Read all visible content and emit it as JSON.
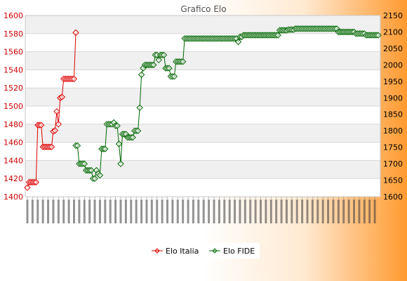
{
  "chart_data": {
    "type": "line",
    "title": "Grafico Elo",
    "left_axis": {
      "min": 1400,
      "max": 1600,
      "ticks": [
        1400,
        1420,
        1440,
        1460,
        1480,
        1500,
        1520,
        1540,
        1560,
        1580,
        1600
      ],
      "color": "#cc0000"
    },
    "right_axis": {
      "min": 1600,
      "max": 2150,
      "ticks": [
        1600,
        1650,
        1700,
        1750,
        1800,
        1850,
        1900,
        1950,
        2000,
        2050,
        2100,
        2150
      ],
      "color": "#005500"
    },
    "grid": true,
    "legend_position": "bottom-center",
    "series": [
      {
        "name": "Elo Italia",
        "axis": "left",
        "color": "#dd0000",
        "start_index": 0,
        "values": [
          1410,
          1416,
          1416,
          1416,
          1416,
          1416,
          1479,
          1479,
          1479,
          1455,
          1455,
          1455,
          1455,
          1455,
          1455,
          1472,
          1473,
          1494,
          1480,
          1509,
          1510,
          1530,
          1530,
          1530,
          1530,
          1530,
          1530,
          1530,
          1581
        ]
      },
      {
        "name": "Elo FIDE",
        "axis": "right",
        "color": "#006600",
        "start_index": 28,
        "values": [
          1755,
          1755,
          1700,
          1700,
          1700,
          1700,
          1680,
          1680,
          1680,
          1680,
          1655,
          1655,
          1680,
          1670,
          1665,
          1745,
          1745,
          1745,
          1820,
          1820,
          1820,
          1820,
          1825,
          1815,
          1815,
          1760,
          1700,
          1790,
          1790,
          1790,
          1780,
          1780,
          1780,
          1780,
          1800,
          1800,
          1800,
          1870,
          1970,
          1990,
          2000,
          2000,
          2000,
          2000,
          2000,
          2000,
          2030,
          2030,
          2015,
          2030,
          2030,
          2030,
          1990,
          1990,
          1990,
          1965,
          1965,
          1965,
          2010,
          2010,
          2010,
          2010,
          2010,
          2080,
          2080,
          2080,
          2080,
          2080,
          2080,
          2080,
          2080,
          2080,
          2080,
          2080,
          2080,
          2080,
          2080,
          2080,
          2080,
          2080,
          2080,
          2080,
          2080,
          2080,
          2080,
          2080,
          2080,
          2080,
          2080,
          2080,
          2080,
          2080,
          2080,
          2080,
          2070,
          2085,
          2085,
          2090,
          2090,
          2090,
          2090,
          2090,
          2090,
          2090,
          2090,
          2090,
          2090,
          2090,
          2090,
          2090,
          2090,
          2090,
          2090,
          2090,
          2090,
          2090,
          2090,
          2090,
          2105,
          2105,
          2105,
          2105,
          2105,
          2107,
          2107,
          2107,
          2107,
          2110,
          2110,
          2110,
          2110,
          2110,
          2110,
          2110,
          2110,
          2110,
          2110,
          2110,
          2110,
          2110,
          2110,
          2110,
          2110,
          2110,
          2110,
          2110,
          2110,
          2110,
          2110,
          2110,
          2110,
          2110,
          2100,
          2100,
          2100,
          2100,
          2100,
          2100,
          2100,
          2100,
          2100,
          2100,
          2095,
          2095,
          2095,
          2095,
          2095,
          2095,
          2090,
          2090,
          2090,
          2090,
          2090,
          2090,
          2090,
          2090
        ]
      }
    ]
  },
  "legend": {
    "items": [
      "Elo Italia",
      "Elo FIDE"
    ]
  }
}
